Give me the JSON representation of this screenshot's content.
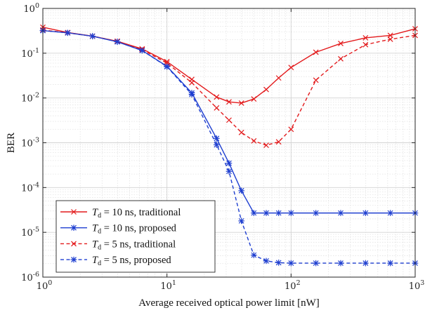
{
  "chart_data": {
    "type": "line",
    "xlabel": "Average received optical power limit [nW]",
    "ylabel": "BER",
    "xscale": "log",
    "yscale": "log",
    "xlim": [
      1,
      1000
    ],
    "ylim": [
      1e-06,
      1
    ],
    "grid": true,
    "legend_position": "bottom-left",
    "x_ticks": [
      1,
      10,
      100,
      1000
    ],
    "x_tick_labels": [
      {
        "base": "10",
        "exp": "0"
      },
      {
        "base": "10",
        "exp": "1"
      },
      {
        "base": "10",
        "exp": "2"
      },
      {
        "base": "10",
        "exp": "3"
      }
    ],
    "y_ticks": [
      1e-06,
      1e-05,
      0.0001,
      0.001,
      0.01,
      0.1,
      1
    ],
    "y_tick_labels": [
      {
        "base": "10",
        "exp": "-6"
      },
      {
        "base": "10",
        "exp": "-5"
      },
      {
        "base": "10",
        "exp": "-4"
      },
      {
        "base": "10",
        "exp": "-3"
      },
      {
        "base": "10",
        "exp": "-2"
      },
      {
        "base": "10",
        "exp": "-1"
      },
      {
        "base": "10",
        "exp": "0"
      }
    ],
    "series": [
      {
        "name": "T_d = 10 ns, traditional",
        "legend": {
          "sym": "T",
          "sub": "d",
          "rest": " = 10 ns, traditional"
        },
        "color": "#e31a1c",
        "linestyle": "solid",
        "marker": "x",
        "x": [
          1,
          1.585,
          2.512,
          3.981,
          6.31,
          10,
          15.85,
          25.12,
          31.62,
          39.81,
          50.12,
          63.1,
          79.43,
          100,
          158.5,
          251.2,
          398.1,
          631,
          1000
        ],
        "y": [
          0.38,
          0.29,
          0.24,
          0.185,
          0.125,
          0.065,
          0.026,
          0.0105,
          0.0082,
          0.0077,
          0.0095,
          0.0155,
          0.028,
          0.048,
          0.105,
          0.165,
          0.22,
          0.25,
          0.35
        ]
      },
      {
        "name": "T_d = 10 ns, proposed",
        "legend": {
          "sym": "T",
          "sub": "d",
          "rest": " = 10 ns, proposed"
        },
        "color": "#1f3fd0",
        "linestyle": "solid",
        "marker": "*",
        "x": [
          1,
          1.585,
          2.512,
          3.981,
          6.31,
          10,
          15.85,
          25.12,
          31.62,
          39.81,
          50.12,
          63.1,
          79.43,
          100,
          158.5,
          251.2,
          398.1,
          631,
          1000
        ],
        "y": [
          0.32,
          0.285,
          0.24,
          0.18,
          0.115,
          0.051,
          0.013,
          0.00125,
          0.00035,
          8.5e-05,
          2.7e-05,
          2.7e-05,
          2.7e-05,
          2.7e-05,
          2.7e-05,
          2.7e-05,
          2.7e-05,
          2.7e-05,
          2.7e-05
        ]
      },
      {
        "name": "T_d = 5 ns, traditional",
        "legend": {
          "sym": "T",
          "sub": "d",
          "rest": " = 5 ns, traditional"
        },
        "color": "#e31a1c",
        "linestyle": "dashed",
        "marker": "x",
        "x": [
          1,
          1.585,
          2.512,
          3.981,
          6.31,
          10,
          15.85,
          25.12,
          31.62,
          39.81,
          50.12,
          63.1,
          79.43,
          100,
          158.5,
          251.2,
          398.1,
          631,
          1000
        ],
        "y": [
          0.33,
          0.285,
          0.24,
          0.185,
          0.12,
          0.06,
          0.022,
          0.006,
          0.0032,
          0.0017,
          0.0011,
          0.00088,
          0.00105,
          0.002,
          0.025,
          0.075,
          0.155,
          0.205,
          0.25
        ]
      },
      {
        "name": "T_d = 5 ns, proposed",
        "legend": {
          "sym": "T",
          "sub": "d",
          "rest": " = 5 ns, proposed"
        },
        "color": "#1f3fd0",
        "linestyle": "dashed",
        "marker": "*",
        "x": [
          1,
          1.585,
          2.512,
          3.981,
          6.31,
          10,
          15.85,
          25.12,
          31.62,
          39.81,
          50.12,
          63.1,
          79.43,
          100,
          158.5,
          251.2,
          398.1,
          631,
          1000
        ],
        "y": [
          0.32,
          0.285,
          0.24,
          0.18,
          0.115,
          0.05,
          0.012,
          0.0009,
          0.00023,
          1.8e-05,
          3.1e-06,
          2.3e-06,
          2.1e-06,
          2.05e-06,
          2.05e-06,
          2.05e-06,
          2.05e-06,
          2.05e-06,
          2.05e-06
        ]
      }
    ]
  }
}
